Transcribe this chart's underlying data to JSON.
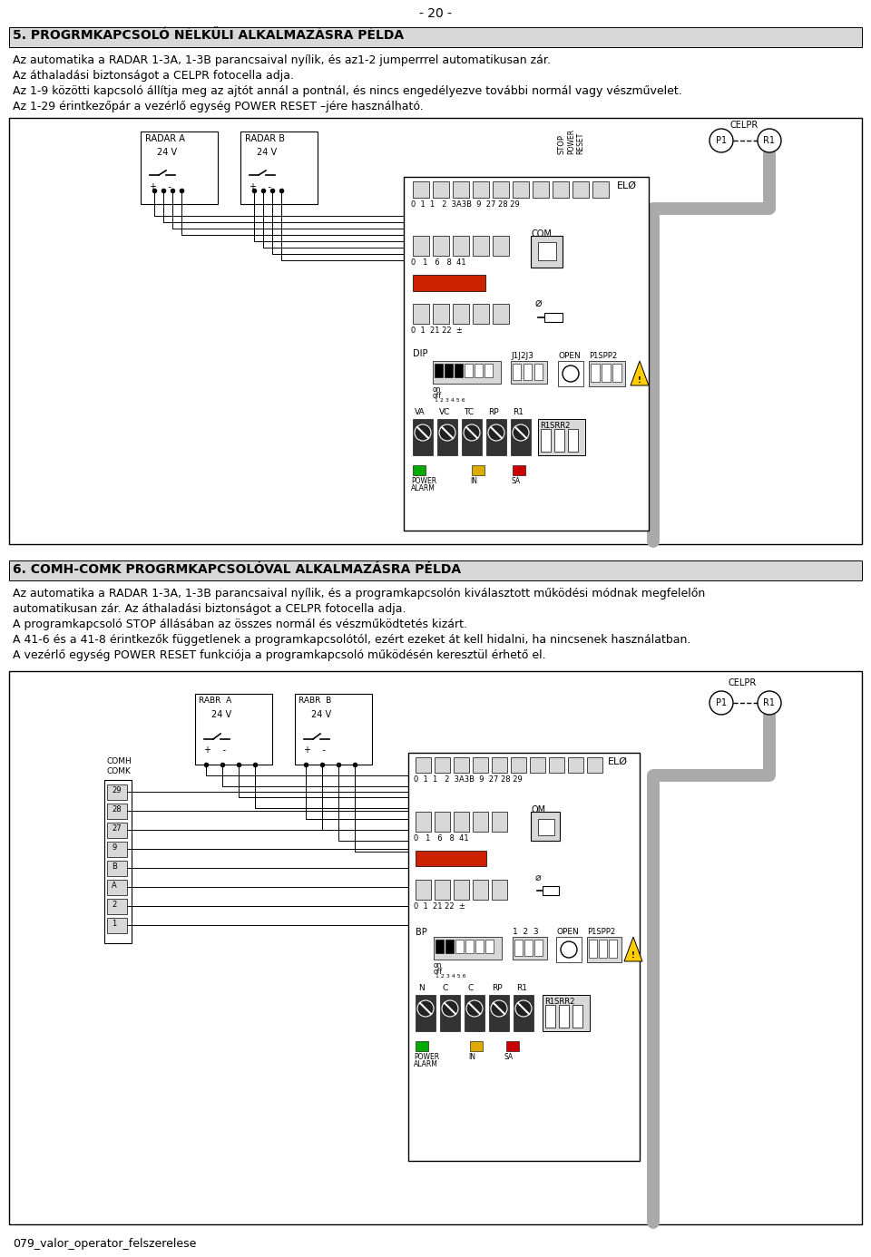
{
  "page_number": "- 20 -",
  "white": "#ffffff",
  "black": "#000000",
  "light_gray": "#d8d8d8",
  "medium_gray": "#aaaaaa",
  "dark_gray": "#666666",
  "green": "#00aa00",
  "yellow": "#ddaa00",
  "red": "#cc0000",
  "red_component": "#cc2200",
  "section5_title": "5. PROGRMKAPCSOLÓ NÉLKÜLI ALKALMAZÁSRA PÉLDA",
  "section5_lines": [
    "Az automatika a RADAR 1-3A, 1-3B parancsaival nyílik, és az1-2 jumperrrel automatikusan zár.",
    "Az áthaladási biztonságot a CELPR fotocella adja.",
    "Az 1-9 közötti kapcsoló állítja meg az ajtót annál a pontnál, és nincs engedélyezve további normál vagy vészművelet.",
    "Az 1-29 érintkezőpár a vezérlő egység POWER RESET –jére használható."
  ],
  "section6_title": "6. COMH-COMK PROGRMKAPCSOLÓVAL ALKALMAZÁSRA PÉLDA",
  "section6_lines": [
    "Az automatika a RADAR 1-3A, 1-3B parancsaival nyílik, és a programkapcsolón kiválasztott működési módnak megfelelőn",
    "automatikusan zár. Az áthaladási biztonságot a CELPR fotocella adja.",
    "A programkapcsoló STOP állásában az összes normál és vészműködtetés kizárt.",
    "A 41-6 és a 41-8 érintkezők függetlenek a programkapcsolótól, ezért ezeket át kell hidalni, ha nincsenek használatban.",
    "A vezérlő egység POWER RESET funkciója a programkapcsoló működésén keresztül érhető el."
  ],
  "footer": "079_valor_operator_felszerelese"
}
